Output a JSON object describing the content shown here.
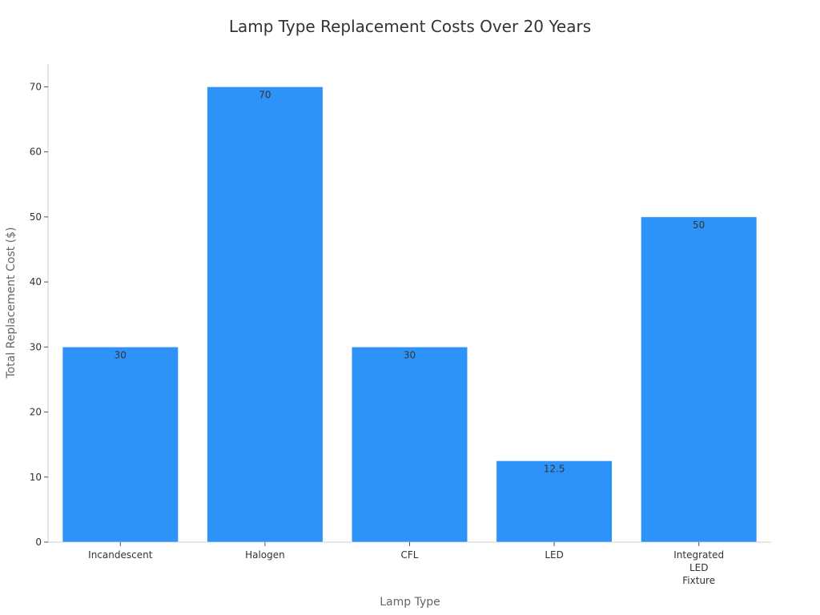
{
  "chart_data": {
    "type": "bar",
    "title": "Lamp Type Replacement Costs Over 20 Years",
    "xlabel": "Lamp Type",
    "ylabel": "Total Replacement Cost ($)",
    "categories": [
      [
        "Incandescent"
      ],
      [
        "Halogen"
      ],
      [
        "CFL"
      ],
      [
        "LED"
      ],
      [
        "Integrated",
        "LED",
        "Fixture"
      ]
    ],
    "values": [
      30,
      70,
      30,
      12.5,
      50
    ],
    "value_labels": [
      "30",
      "70",
      "30",
      "12.5",
      "50"
    ],
    "yticks": [
      "0",
      "10",
      "20",
      "30",
      "40",
      "50",
      "60",
      "70"
    ],
    "ytick_values": [
      0,
      10,
      20,
      30,
      40,
      50,
      60,
      70
    ],
    "ylim": [
      0,
      73.5
    ],
    "grid": false,
    "bar_color": "#2e93f8"
  }
}
